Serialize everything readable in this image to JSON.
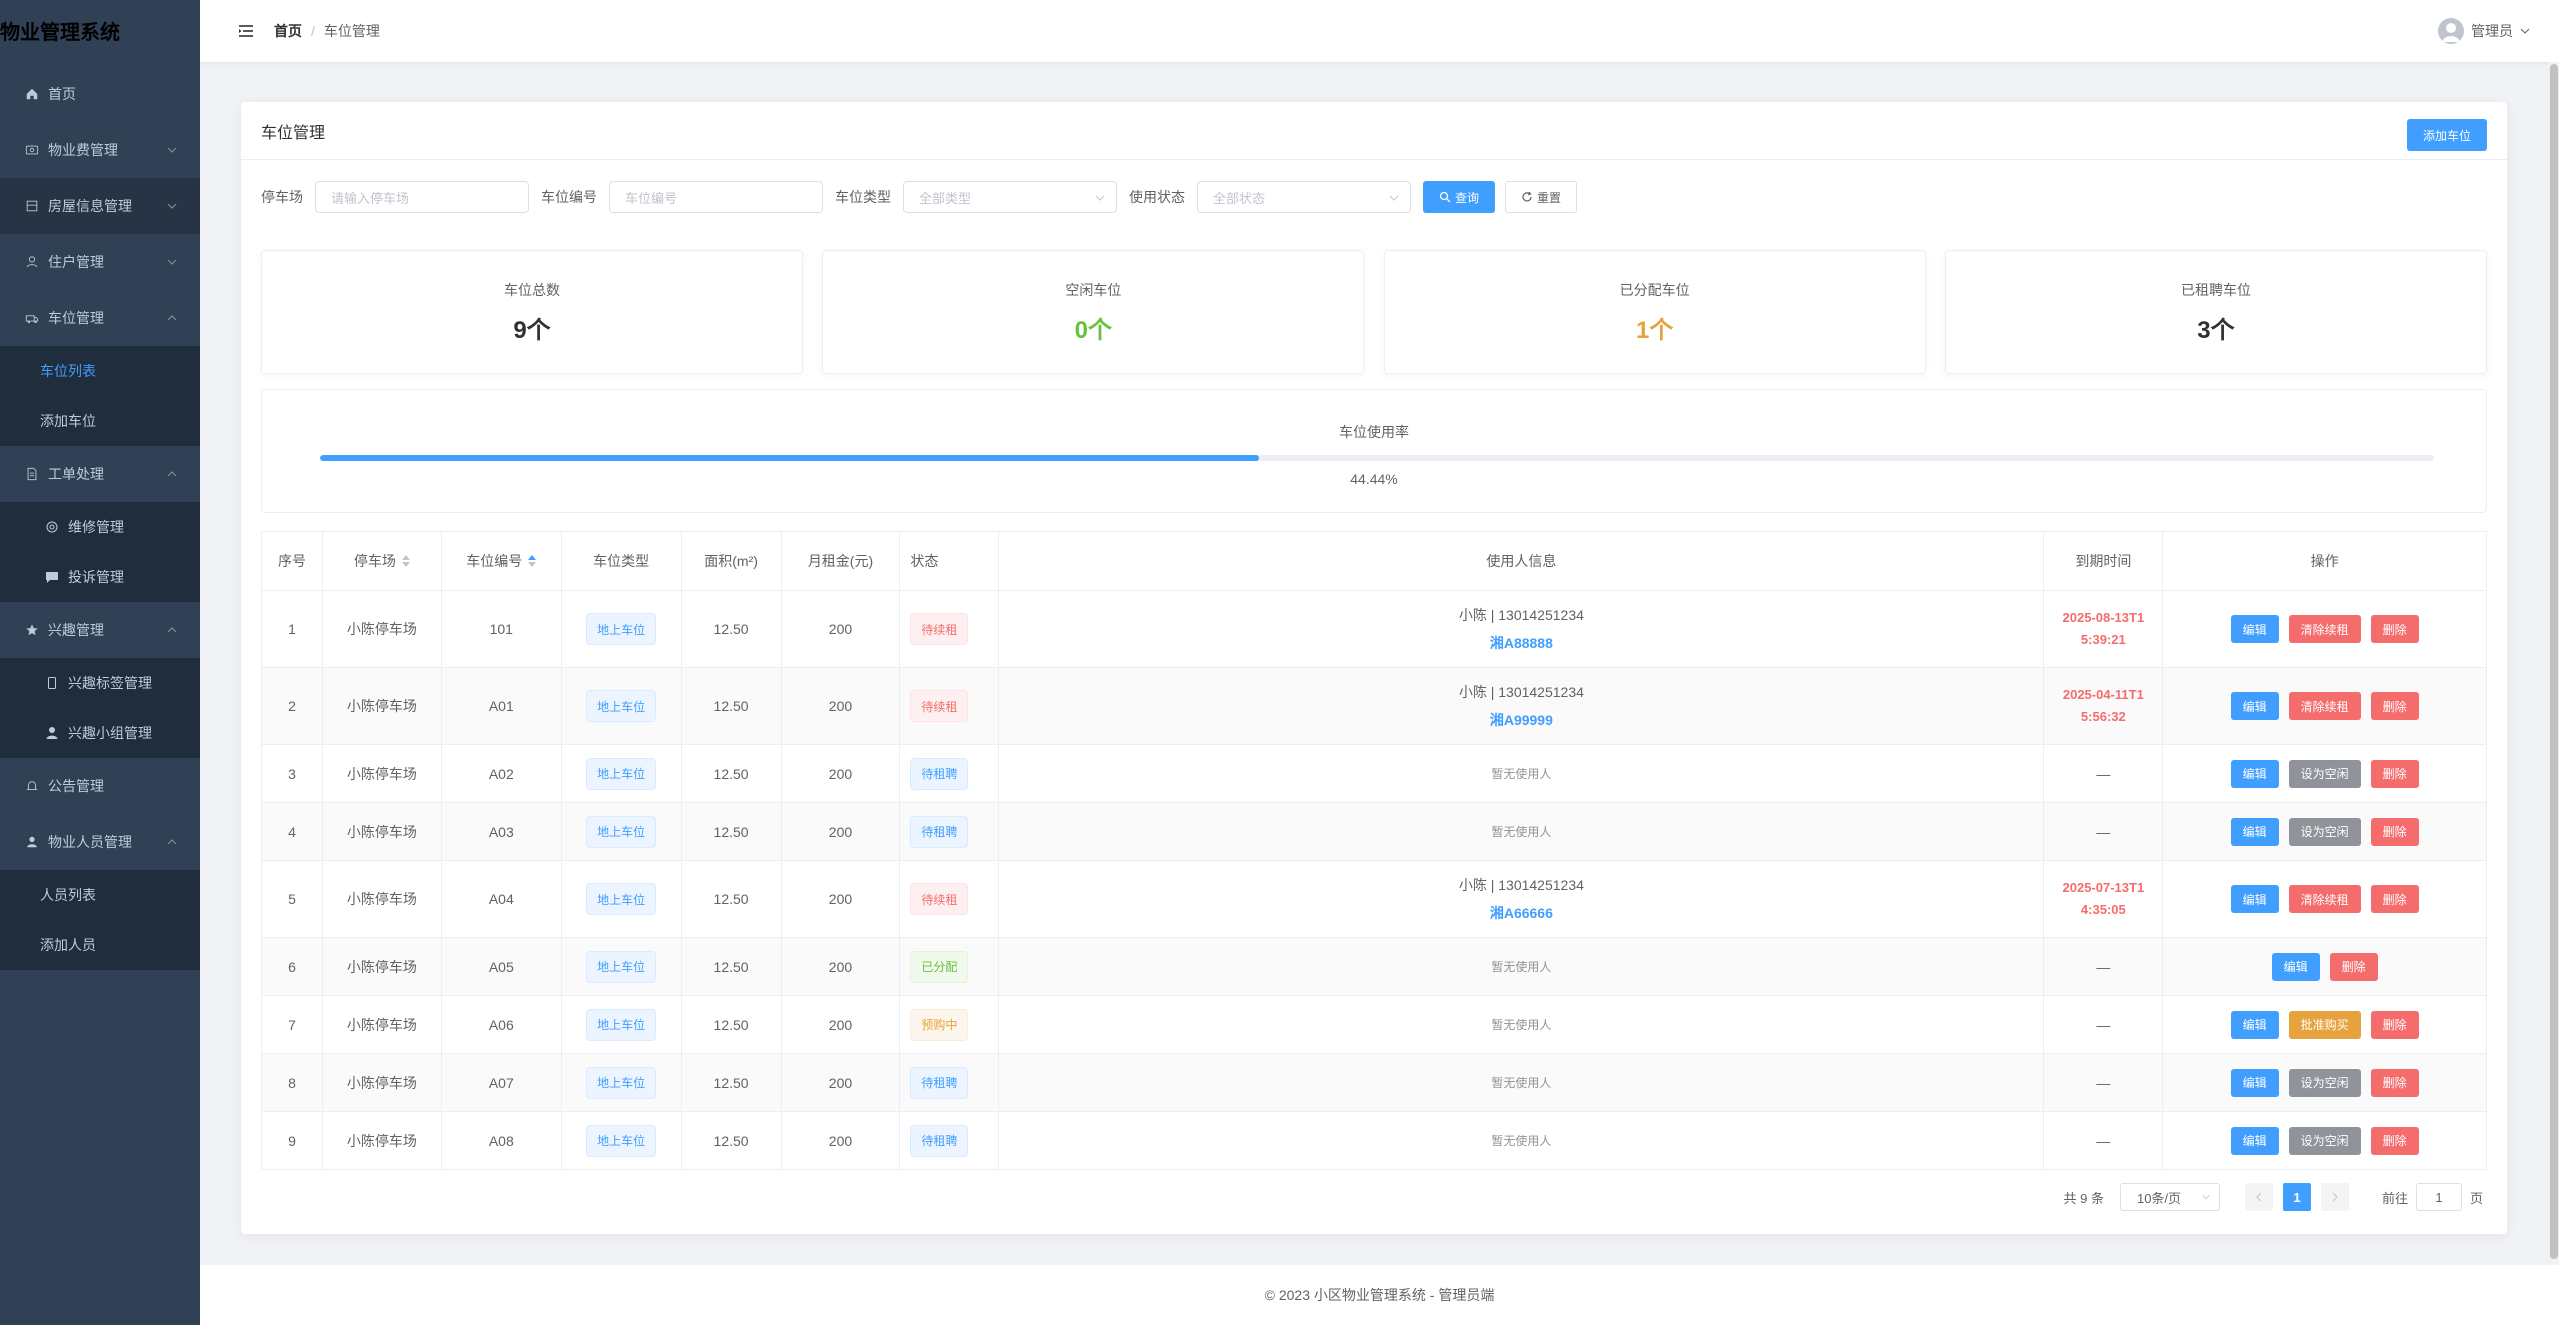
{
  "app": {
    "title": "物业管理系统"
  },
  "sidebar": {
    "items": [
      {
        "label": "首页",
        "icon": "home-icon"
      },
      {
        "label": "物业费管理",
        "icon": "money-icon"
      },
      {
        "label": "房屋信息管理",
        "icon": "house-icon"
      },
      {
        "label": "住户管理",
        "icon": "user-icon"
      },
      {
        "label": "车位管理",
        "icon": "car-icon"
      },
      {
        "label": "车位列表"
      },
      {
        "label": "添加车位"
      },
      {
        "label": "工单处理",
        "icon": "document-icon"
      },
      {
        "label": "维修管理",
        "icon": "gear-icon"
      },
      {
        "label": "投诉管理",
        "icon": "chat-icon"
      },
      {
        "label": "兴趣管理",
        "icon": "star-icon"
      },
      {
        "label": "兴趣标签管理",
        "icon": "tag-icon"
      },
      {
        "label": "兴趣小组管理",
        "icon": "group-icon"
      },
      {
        "label": "公告管理",
        "icon": "bell-icon"
      },
      {
        "label": "物业人员管理",
        "icon": "staff-icon"
      },
      {
        "label": "人员列表"
      },
      {
        "label": "添加人员"
      }
    ]
  },
  "header": {
    "breadcrumb": {
      "home": "首页",
      "separator": "/",
      "current": "车位管理"
    },
    "user": "管理员"
  },
  "card": {
    "title": "车位管理",
    "add_button": "添加车位"
  },
  "filters": {
    "parking_label": "停车场",
    "parking_placeholder": "请输入停车场",
    "code_label": "车位编号",
    "code_placeholder": "车位编号",
    "type_label": "车位类型",
    "type_value": "全部类型",
    "status_label": "使用状态",
    "status_value": "全部状态",
    "search_button": "查询",
    "reset_button": "重置"
  },
  "stats": [
    {
      "label": "车位总数",
      "value": "9个",
      "color": "#303133"
    },
    {
      "label": "空闲车位",
      "value": "0个",
      "color": "#67c23a"
    },
    {
      "label": "已分配车位",
      "value": "1个",
      "color": "#e6a23c"
    },
    {
      "label": "已租聘车位",
      "value": "3个",
      "color": "#303133"
    }
  ],
  "usage": {
    "label": "车位使用率",
    "percent_text": "44.44%",
    "fraction": 0.4444
  },
  "table": {
    "headers": [
      "序号",
      "停车场",
      "车位编号",
      "车位类型",
      "面积(m²)",
      "月租金(元)",
      "状态",
      "使用人信息",
      "到期时间",
      "操作"
    ],
    "rows": [
      {
        "no": "1",
        "lot": "小陈停车场",
        "code": "101",
        "type": "地上车位",
        "area": "12.50",
        "rent": "200",
        "status": "待续租",
        "status_kind": "danger",
        "user": "小陈 | 13014251234",
        "plate": "湘A88888",
        "expire1": "2025-08-13T1",
        "expire2": "5:39:21",
        "ops": [
          [
            "编辑",
            "edit"
          ],
          [
            "清除续租",
            "red"
          ],
          [
            "删除",
            "red"
          ]
        ]
      },
      {
        "no": "2",
        "lot": "小陈停车场",
        "code": "A01",
        "type": "地上车位",
        "area": "12.50",
        "rent": "200",
        "status": "待续租",
        "status_kind": "danger",
        "user": "小陈 | 13014251234",
        "plate": "湘A99999",
        "expire1": "2025-04-11T1",
        "expire2": "5:56:32",
        "ops": [
          [
            "编辑",
            "edit"
          ],
          [
            "清除续租",
            "red"
          ],
          [
            "删除",
            "red"
          ]
        ]
      },
      {
        "no": "3",
        "lot": "小陈停车场",
        "code": "A02",
        "type": "地上车位",
        "area": "12.50",
        "rent": "200",
        "status": "待租聘",
        "status_kind": "info",
        "empty": "暂无使用人",
        "dash": "—",
        "ops": [
          [
            "编辑",
            "edit"
          ],
          [
            "设为空闲",
            "gray"
          ],
          [
            "删除",
            "red"
          ]
        ]
      },
      {
        "no": "4",
        "lot": "小陈停车场",
        "code": "A03",
        "type": "地上车位",
        "area": "12.50",
        "rent": "200",
        "status": "待租聘",
        "status_kind": "info",
        "empty": "暂无使用人",
        "dash": "—",
        "ops": [
          [
            "编辑",
            "edit"
          ],
          [
            "设为空闲",
            "gray"
          ],
          [
            "删除",
            "red"
          ]
        ]
      },
      {
        "no": "5",
        "lot": "小陈停车场",
        "code": "A04",
        "type": "地上车位",
        "area": "12.50",
        "rent": "200",
        "status": "待续租",
        "status_kind": "danger",
        "user": "小陈 | 13014251234",
        "plate": "湘A66666",
        "expire1": "2025-07-13T1",
        "expire2": "4:35:05",
        "ops": [
          [
            "编辑",
            "edit"
          ],
          [
            "清除续租",
            "red"
          ],
          [
            "删除",
            "red"
          ]
        ]
      },
      {
        "no": "6",
        "lot": "小陈停车场",
        "code": "A05",
        "type": "地上车位",
        "area": "12.50",
        "rent": "200",
        "status": "已分配",
        "status_kind": "success",
        "empty": "暂无使用人",
        "dash": "—",
        "ops": [
          [
            "编辑",
            "edit"
          ],
          [
            "删除",
            "red"
          ]
        ]
      },
      {
        "no": "7",
        "lot": "小陈停车场",
        "code": "A06",
        "type": "地上车位",
        "area": "12.50",
        "rent": "200",
        "status": "预购中",
        "status_kind": "warning",
        "empty": "暂无使用人",
        "dash": "—",
        "ops": [
          [
            "编辑",
            "edit"
          ],
          [
            "批准购买",
            "orange"
          ],
          [
            "删除",
            "red"
          ]
        ]
      },
      {
        "no": "8",
        "lot": "小陈停车场",
        "code": "A07",
        "type": "地上车位",
        "area": "12.50",
        "rent": "200",
        "status": "待租聘",
        "status_kind": "info",
        "empty": "暂无使用人",
        "dash": "—",
        "ops": [
          [
            "编辑",
            "edit"
          ],
          [
            "设为空闲",
            "gray"
          ],
          [
            "删除",
            "red"
          ]
        ]
      },
      {
        "no": "9",
        "lot": "小陈停车场",
        "code": "A08",
        "type": "地上车位",
        "area": "12.50",
        "rent": "200",
        "status": "待租聘",
        "status_kind": "info",
        "empty": "暂无使用人",
        "dash": "—",
        "ops": [
          [
            "编辑",
            "edit"
          ],
          [
            "设为空闲",
            "gray"
          ],
          [
            "删除",
            "red"
          ]
        ]
      }
    ]
  },
  "pagination": {
    "total": "共 9 条",
    "page_size": "10条/页",
    "current": "1",
    "jump_prefix": "前往",
    "jump_value": "1",
    "jump_suffix": "页"
  },
  "footer": {
    "text": "© 2023 小区物业管理系统 - 管理员端"
  },
  "colors": {
    "accent": "#409eff",
    "sidebar": "#304156",
    "danger": "#f56c6c",
    "success": "#67c23a",
    "warning": "#e6a23c"
  }
}
